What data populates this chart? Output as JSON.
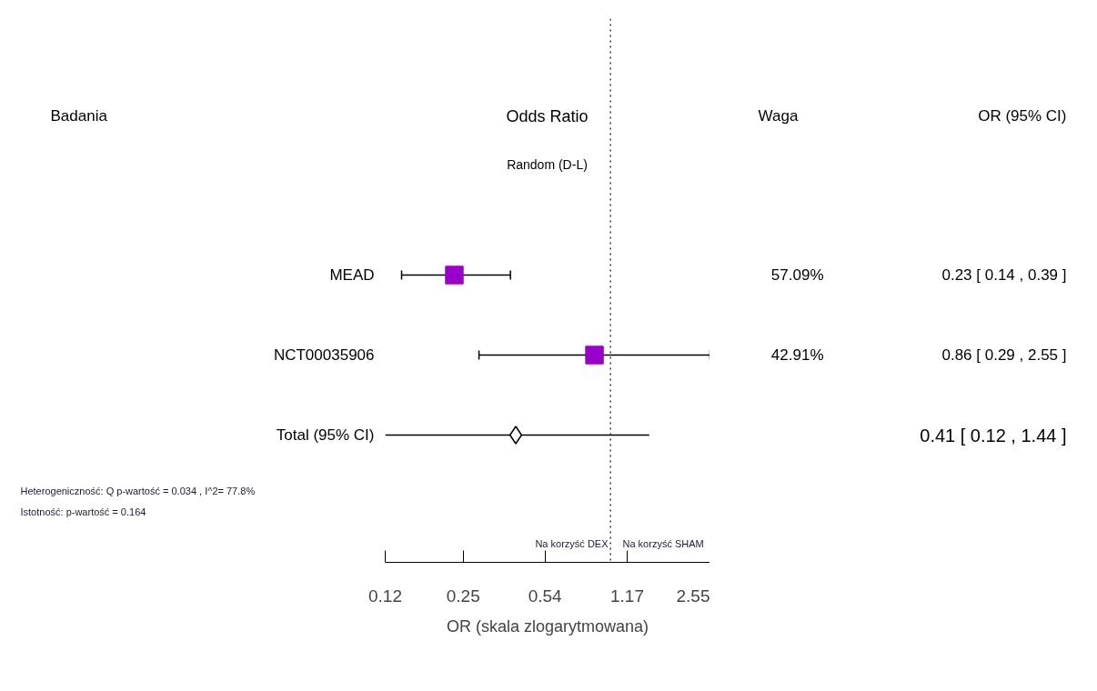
{
  "chart_data": {
    "type": "scatter",
    "title": "Odds Ratio",
    "subtitle": "Random (D-L)",
    "xlabel": "OR (skala zlogarytmowana)",
    "categories": [
      "MEAD",
      "NCT00035906",
      "Total (95% CI)"
    ],
    "orientation": "horizontal",
    "log": "x",
    "xlim": [
      0.12,
      2.55
    ],
    "xticks": [
      0.12,
      0.25,
      0.54,
      1.17,
      2.55
    ],
    "series": [
      {
        "color": "#9900cc",
        "marker": "square",
        "values": [
          0.23,
          0.86,
          null
        ],
        "errors": [
          [
            0.14,
            0.39
          ],
          [
            0.29,
            2.55
          ],
          null
        ]
      },
      {
        "color": "#000000",
        "marker": "diamond",
        "values": [
          null,
          null,
          0.41
        ],
        "errors": [
          null,
          null,
          [
            0.12,
            1.44
          ]
        ]
      }
    ],
    "ref_lines": [
      {
        "axis": "x",
        "value": 1,
        "line_style": "dotted"
      }
    ],
    "annotations": [
      "Badania",
      "Waga",
      "OR (95% CI)",
      "57.09%",
      "42.91%",
      "0.23 [ 0.14 , 0.39 ]",
      "0.86 [ 0.29 , 2.55 ]",
      "0.41 [ 0.12 , 1.44 ]",
      "Heterogeniczność: Q p-wartość = 0.034 , I^2= 77.8%",
      "Istotność: p-wartość = 0.164",
      "Na korzyść DEX",
      "Na korzyść SHAM"
    ]
  }
}
